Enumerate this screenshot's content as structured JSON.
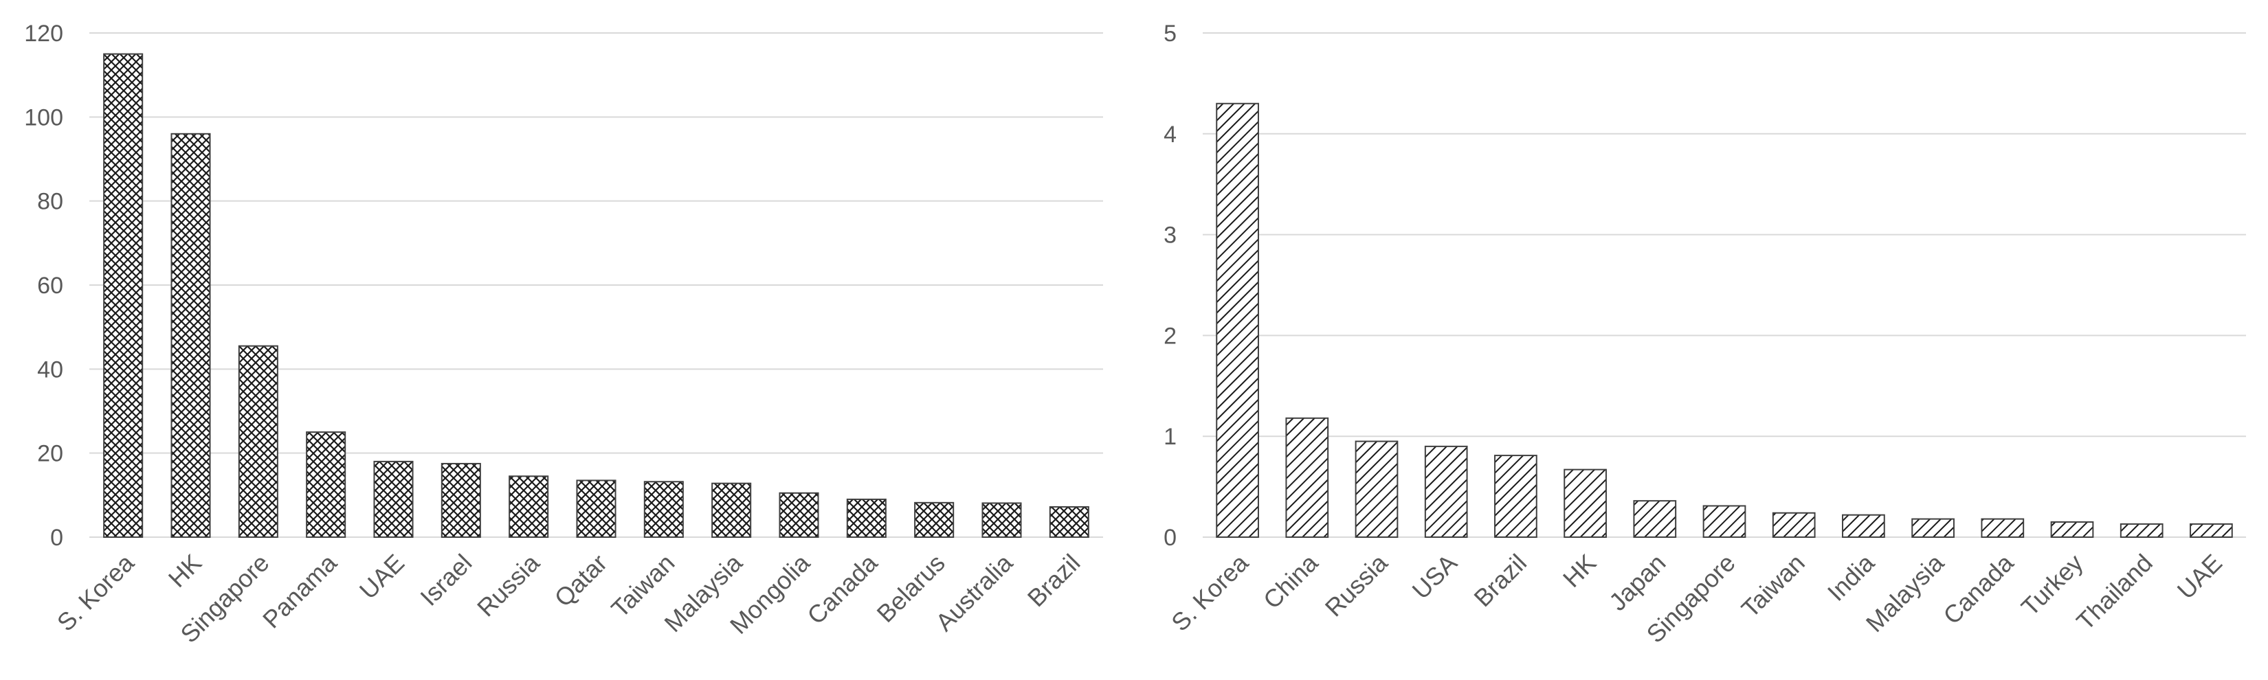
{
  "chart_data": [
    {
      "type": "bar",
      "categories": [
        "S. Korea",
        "HK",
        "Singapore",
        "Panama",
        "UAE",
        "Israel",
        "Russia",
        "Qatar",
        "Taiwan",
        "Malaysia",
        "Mongolia",
        "Canada",
        "Belarus",
        "Australia",
        "Brazil"
      ],
      "values": [
        115,
        96,
        45.5,
        25,
        18,
        17.5,
        14.5,
        13.5,
        13.2,
        12.8,
        10.5,
        9,
        8.2,
        8.1,
        7.2
      ],
      "ylim": [
        0,
        120
      ],
      "yticks": [
        0,
        20,
        40,
        60,
        80,
        100,
        120
      ],
      "grid": true,
      "fill_pattern": "crosshatch",
      "colors": {
        "bar_stroke": "#404040",
        "pattern": "#1a1a1a",
        "grid": "#d9d9d9",
        "text": "#595959"
      }
    },
    {
      "type": "bar",
      "categories": [
        "S. Korea",
        "China",
        "Russia",
        "USA",
        "Brazil",
        "HK",
        "Japan",
        "Singapore",
        "Taiwan",
        "India",
        "Malaysia",
        "Canada",
        "Turkey",
        "Thailand",
        "UAE"
      ],
      "values": [
        4.3,
        1.18,
        0.95,
        0.9,
        0.81,
        0.67,
        0.36,
        0.31,
        0.24,
        0.22,
        0.18,
        0.18,
        0.15,
        0.13,
        0.13
      ],
      "ylim": [
        0,
        5
      ],
      "yticks": [
        0,
        1,
        2,
        3,
        4,
        5
      ],
      "grid": true,
      "fill_pattern": "diagonal-stripes",
      "colors": {
        "bar_stroke": "#404040",
        "pattern": "#1a1a1a",
        "grid": "#d9d9d9",
        "text": "#595959"
      }
    }
  ]
}
